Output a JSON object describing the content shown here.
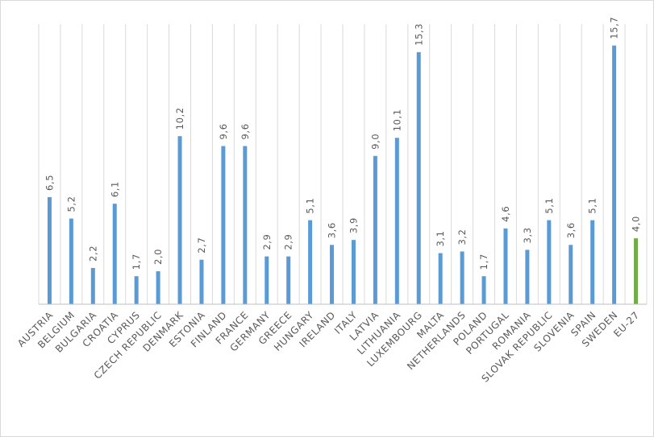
{
  "chart_data": {
    "type": "bar",
    "title": "",
    "xlabel": "",
    "ylabel": "",
    "ylim": [
      0,
      17
    ],
    "grid": "vertical category gridlines",
    "legend": "none",
    "categories": [
      "AUSTRIA",
      "BELGIUM",
      "BULGARIA",
      "CROATIA",
      "CYPRUS",
      "CZECH REPUBLIC",
      "DENMARK",
      "ESTONIA",
      "FINLAND",
      "FRANCE",
      "GERMANY",
      "GREECE",
      "HUNGARY",
      "IRELAND",
      "ITALY",
      "LATVIA",
      "LITHUANIA",
      "LUXEMBOURG",
      "MALTA",
      "NETHERLANDS",
      "POLAND",
      "PORTUGAL",
      "ROMANIA",
      "SLOVAK REPUBLIC",
      "SLOVENIA",
      "SPAIN",
      "SWEDEN",
      "EU-27"
    ],
    "values": [
      6.5,
      5.2,
      2.2,
      6.1,
      1.7,
      2.0,
      10.2,
      2.7,
      9.6,
      9.6,
      2.9,
      2.9,
      5.1,
      3.6,
      3.9,
      9.0,
      10.1,
      15.3,
      3.1,
      3.2,
      1.7,
      4.6,
      3.3,
      5.1,
      3.6,
      5.1,
      15.7,
      4.0
    ],
    "value_labels": [
      "6,5",
      "5,2",
      "2,2",
      "6,1",
      "1,7",
      "2,0",
      "10,2",
      "2,7",
      "9,6",
      "9,6",
      "2,9",
      "2,9",
      "5,1",
      "3,6",
      "3,9",
      "9,0",
      "10,1",
      "15,3",
      "3,1",
      "3,2",
      "1,7",
      "4,6",
      "3,3",
      "5,1",
      "3,6",
      "5,1",
      "15,7",
      "4,0"
    ],
    "highlight_category": "EU-27",
    "colors": {
      "bar": "#5b9bd5",
      "highlight": "#70ad47",
      "grid": "#d9d9d9",
      "axis": "#bfbfbf",
      "text": "#595959"
    }
  }
}
